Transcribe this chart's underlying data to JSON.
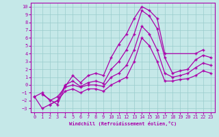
{
  "xlabel": "Windchill (Refroidissement éolien,°C)",
  "xlim": [
    -0.5,
    23.5
  ],
  "ylim": [
    -3.5,
    10.5
  ],
  "xticks": [
    0,
    1,
    2,
    3,
    4,
    5,
    6,
    7,
    8,
    9,
    10,
    11,
    12,
    13,
    14,
    15,
    16,
    17,
    18,
    19,
    20,
    21,
    22,
    23
  ],
  "yticks": [
    -3,
    -2,
    -1,
    0,
    1,
    2,
    3,
    4,
    5,
    6,
    7,
    8,
    9,
    10
  ],
  "bg_color": "#c5e8e8",
  "line_color": "#aa00aa",
  "grid_color": "#99cccc",
  "series": [
    [
      null,
      -1.2,
      null,
      -2.5,
      -0.2,
      1.2,
      0.3,
      1.2,
      1.5,
      1.2,
      3.5,
      5.2,
      6.5,
      8.5,
      10.0,
      9.5,
      8.5,
      4.0,
      null,
      null,
      null,
      4.0,
      4.5,
      null
    ],
    [
      null,
      null,
      -2.5,
      -2.0,
      0.0,
      0.5,
      -0.2,
      0.3,
      0.5,
      0.2,
      2.0,
      3.0,
      4.5,
      6.5,
      9.5,
      8.8,
      7.2,
      3.5,
      1.5,
      1.8,
      2.0,
      3.2,
      3.8,
      3.5
    ],
    [
      -1.5,
      -1.0,
      -2.0,
      -1.5,
      -0.3,
      0.0,
      -0.3,
      0.0,
      0.0,
      -0.2,
      1.0,
      1.5,
      2.5,
      4.5,
      7.5,
      6.5,
      4.5,
      1.5,
      1.0,
      1.2,
      1.5,
      2.2,
      2.8,
      2.5
    ],
    [
      -1.5,
      -3.0,
      -2.5,
      -2.0,
      -0.8,
      -0.5,
      -1.0,
      -0.5,
      -0.5,
      -0.8,
      0.0,
      0.5,
      1.0,
      3.0,
      6.0,
      5.0,
      3.0,
      0.5,
      0.5,
      0.7,
      0.8,
      1.2,
      1.8,
      1.5
    ]
  ]
}
